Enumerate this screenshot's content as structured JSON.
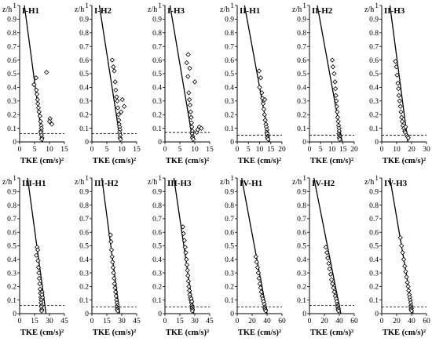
{
  "figure": {
    "ylabel": "z/h",
    "xlabel": "TKE (cm/s)²",
    "colors": {
      "axis": "#000000",
      "marker": "#000000",
      "line": "#000000",
      "dash": "#000000"
    }
  },
  "chart_data": [
    {
      "type": "scatter",
      "title": "I-H1",
      "ylabel": "z/h",
      "xlabel": "TKE (cm/s)²",
      "xlim": [
        0,
        15
      ],
      "xticks": [
        0,
        5,
        10,
        15
      ],
      "ylim": [
        0,
        1.0
      ],
      "yticks": [
        0,
        0.1,
        0.2,
        0.3,
        0.4,
        0.5,
        0.6,
        0.7,
        0.8,
        0.9,
        1.0
      ],
      "points": [
        [
          4.8,
          0.42
        ],
        [
          5.5,
          0.47
        ],
        [
          5.6,
          0.38
        ],
        [
          5.8,
          0.35
        ],
        [
          6.0,
          0.31
        ],
        [
          6.1,
          0.28
        ],
        [
          6.3,
          0.25
        ],
        [
          6.5,
          0.22
        ],
        [
          6.8,
          0.19
        ],
        [
          7.0,
          0.15
        ],
        [
          7.2,
          0.12
        ],
        [
          7.3,
          0.1
        ],
        [
          7.2,
          0.08
        ],
        [
          7.1,
          0.07
        ],
        [
          7.3,
          0.05
        ],
        [
          7.5,
          0.03
        ],
        [
          7.4,
          0.02
        ],
        [
          9.0,
          0.51
        ],
        [
          10.2,
          0.17
        ],
        [
          10.8,
          0.13
        ],
        [
          10.0,
          0.15
        ]
      ],
      "fit_line": [
        [
          1.6,
          1.0
        ],
        [
          7.7,
          0.0
        ]
      ],
      "dashed_y": 0.06
    },
    {
      "type": "scatter",
      "title": "I-H2",
      "ylabel": "z/h",
      "xlabel": "TKE (cm/s)²",
      "xlim": [
        0,
        15
      ],
      "xticks": [
        0,
        5,
        10,
        15
      ],
      "ylim": [
        0,
        1.0
      ],
      "yticks": [
        0,
        0.1,
        0.2,
        0.3,
        0.4,
        0.5,
        0.6,
        0.7,
        0.8,
        0.9,
        1.0
      ],
      "points": [
        [
          6.8,
          0.6
        ],
        [
          7.2,
          0.55
        ],
        [
          7.5,
          0.52
        ],
        [
          7.8,
          0.44
        ],
        [
          8.0,
          0.38
        ],
        [
          8.3,
          0.33
        ],
        [
          8.5,
          0.3
        ],
        [
          8.7,
          0.25
        ],
        [
          8.9,
          0.2
        ],
        [
          9.0,
          0.16
        ],
        [
          9.1,
          0.13
        ],
        [
          9.3,
          0.11
        ],
        [
          9.4,
          0.09
        ],
        [
          9.3,
          0.07
        ],
        [
          9.5,
          0.05
        ],
        [
          9.4,
          0.03
        ],
        [
          9.6,
          0.02
        ],
        [
          10.2,
          0.31
        ],
        [
          10.8,
          0.26
        ],
        [
          9.8,
          0.22
        ]
      ],
      "fit_line": [
        [
          2.5,
          1.0
        ],
        [
          9.6,
          0.0
        ]
      ],
      "dashed_y": 0.06
    },
    {
      "type": "scatter",
      "title": "I-H3",
      "ylabel": "z/h",
      "xlabel": "TKE (cm/s)²",
      "xlim": [
        0,
        15
      ],
      "xticks": [
        0,
        5,
        10,
        15
      ],
      "ylim": [
        0,
        1.0
      ],
      "yticks": [
        0,
        0.1,
        0.2,
        0.3,
        0.4,
        0.5,
        0.6,
        0.7,
        0.8,
        0.9,
        1.0
      ],
      "points": [
        [
          7.8,
          0.64
        ],
        [
          7.3,
          0.58
        ],
        [
          8.3,
          0.54
        ],
        [
          7.7,
          0.48
        ],
        [
          8.0,
          0.36
        ],
        [
          8.2,
          0.31
        ],
        [
          8.4,
          0.27
        ],
        [
          8.6,
          0.22
        ],
        [
          8.8,
          0.18
        ],
        [
          8.9,
          0.14
        ],
        [
          9.0,
          0.11
        ],
        [
          9.2,
          0.08
        ],
        [
          9.1,
          0.06
        ],
        [
          9.3,
          0.04
        ],
        [
          9.2,
          0.03
        ],
        [
          9.5,
          0.02
        ],
        [
          10.0,
          0.44
        ],
        [
          11.5,
          0.11
        ],
        [
          12.2,
          0.1
        ],
        [
          10.7,
          0.07
        ],
        [
          11.0,
          0.09
        ]
      ],
      "fit_line": [
        [
          1.7,
          1.0
        ],
        [
          9.4,
          0.0
        ]
      ],
      "dashed_y": 0.07
    },
    {
      "type": "scatter",
      "title": "II-H1",
      "ylabel": "z/h",
      "xlabel": "TKE (cm/s)²",
      "xlim": [
        0,
        20
      ],
      "xticks": [
        0,
        5,
        10,
        15,
        20
      ],
      "ylim": [
        0,
        1.0
      ],
      "yticks": [
        0,
        0.1,
        0.2,
        0.3,
        0.4,
        0.5,
        0.6,
        0.7,
        0.8,
        0.9,
        1.0
      ],
      "points": [
        [
          9.8,
          0.52
        ],
        [
          10.5,
          0.47
        ],
        [
          10.0,
          0.4
        ],
        [
          11.0,
          0.36
        ],
        [
          11.3,
          0.32
        ],
        [
          11.6,
          0.28
        ],
        [
          11.9,
          0.24
        ],
        [
          12.2,
          0.2
        ],
        [
          12.5,
          0.16
        ],
        [
          12.8,
          0.13
        ],
        [
          13.0,
          0.11
        ],
        [
          13.3,
          0.09
        ],
        [
          13.2,
          0.07
        ],
        [
          13.4,
          0.06
        ],
        [
          13.6,
          0.04
        ],
        [
          13.5,
          0.03
        ],
        [
          13.8,
          0.02
        ],
        [
          12.3,
          0.31
        ]
      ],
      "fit_line": [
        [
          3.3,
          1.0
        ],
        [
          14.5,
          0.0
        ]
      ],
      "dashed_y": 0.05
    },
    {
      "type": "scatter",
      "title": "II-H2",
      "ylabel": "z/h",
      "xlabel": "TKE (cm/s)²",
      "xlim": [
        0,
        20
      ],
      "xticks": [
        0,
        5,
        10,
        15,
        20
      ],
      "ylim": [
        0,
        1.0
      ],
      "yticks": [
        0,
        0.1,
        0.2,
        0.3,
        0.4,
        0.5,
        0.6,
        0.7,
        0.8,
        0.9,
        1.0
      ],
      "points": [
        [
          10.2,
          0.6
        ],
        [
          10.5,
          0.55
        ],
        [
          11.0,
          0.5
        ],
        [
          11.4,
          0.44
        ],
        [
          11.6,
          0.39
        ],
        [
          11.8,
          0.34
        ],
        [
          12.0,
          0.3
        ],
        [
          12.2,
          0.26
        ],
        [
          12.4,
          0.22
        ],
        [
          12.6,
          0.18
        ],
        [
          12.8,
          0.15
        ],
        [
          13.0,
          0.12
        ],
        [
          13.2,
          0.1
        ],
        [
          13.3,
          0.08
        ],
        [
          13.1,
          0.06
        ],
        [
          13.4,
          0.05
        ],
        [
          13.6,
          0.04
        ],
        [
          13.3,
          0.03
        ],
        [
          13.5,
          0.02
        ]
      ],
      "fit_line": [
        [
          3.5,
          1.0
        ],
        [
          14.6,
          0.0
        ]
      ],
      "dashed_y": 0.05
    },
    {
      "type": "scatter",
      "title": "II-H3",
      "ylabel": "z/h",
      "xlabel": "TKE (cm/s)²",
      "xlim": [
        0,
        30
      ],
      "xticks": [
        0,
        10,
        20,
        30
      ],
      "ylim": [
        0,
        1.0
      ],
      "yticks": [
        0,
        0.1,
        0.2,
        0.3,
        0.4,
        0.5,
        0.6,
        0.7,
        0.8,
        0.9,
        1.0
      ],
      "points": [
        [
          9.2,
          0.59
        ],
        [
          9.8,
          0.55
        ],
        [
          10.3,
          0.49
        ],
        [
          10.8,
          0.43
        ],
        [
          11.2,
          0.39
        ],
        [
          11.5,
          0.34
        ],
        [
          12.0,
          0.3
        ],
        [
          12.5,
          0.26
        ],
        [
          12.9,
          0.22
        ],
        [
          13.3,
          0.18
        ],
        [
          13.7,
          0.15
        ],
        [
          14.2,
          0.12
        ],
        [
          14.8,
          0.1
        ],
        [
          15.4,
          0.08
        ],
        [
          15.8,
          0.07
        ],
        [
          16.6,
          0.05
        ],
        [
          17.2,
          0.04
        ],
        [
          17.8,
          0.03
        ],
        [
          16.0,
          0.11
        ]
      ],
      "fit_line": [
        [
          5.5,
          1.0
        ],
        [
          17.5,
          0.0
        ]
      ],
      "dashed_y": 0.05
    },
    {
      "type": "scatter",
      "title": "III-H1",
      "ylabel": "z/h",
      "xlabel": "TKE (cm/s)²",
      "xlim": [
        0,
        45
      ],
      "xticks": [
        0,
        15,
        30,
        45
      ],
      "ylim": [
        0,
        1.0
      ],
      "yticks": [
        0,
        0.1,
        0.2,
        0.3,
        0.4,
        0.5,
        0.6,
        0.7,
        0.8,
        0.9,
        1.0
      ],
      "points": [
        [
          17.6,
          0.49
        ],
        [
          18.2,
          0.47
        ],
        [
          16.8,
          0.43
        ],
        [
          18.5,
          0.39
        ],
        [
          18.9,
          0.34
        ],
        [
          19.3,
          0.3
        ],
        [
          19.7,
          0.26
        ],
        [
          20.1,
          0.22
        ],
        [
          20.5,
          0.18
        ],
        [
          20.9,
          0.15
        ],
        [
          21.3,
          0.12
        ],
        [
          21.7,
          0.1
        ],
        [
          21.5,
          0.08
        ],
        [
          22.0,
          0.06
        ],
        [
          21.8,
          0.05
        ],
        [
          22.3,
          0.03
        ],
        [
          22.1,
          0.02
        ],
        [
          23.0,
          0.12
        ],
        [
          22.6,
          0.16
        ],
        [
          22.4,
          0.14
        ]
      ],
      "fit_line": [
        [
          8.0,
          1.0
        ],
        [
          26.5,
          0.0
        ]
      ],
      "dashed_y": 0.06
    },
    {
      "type": "scatter",
      "title": "III-H2",
      "ylabel": "z/h",
      "xlabel": "TKE (cm/s)²",
      "xlim": [
        0,
        45
      ],
      "xticks": [
        0,
        15,
        30,
        45
      ],
      "ylim": [
        0,
        1.0
      ],
      "yticks": [
        0,
        0.1,
        0.2,
        0.3,
        0.4,
        0.5,
        0.6,
        0.7,
        0.8,
        0.9,
        1.0
      ],
      "points": [
        [
          18.7,
          0.58
        ],
        [
          19.2,
          0.53
        ],
        [
          19.7,
          0.47
        ],
        [
          20.3,
          0.42
        ],
        [
          20.8,
          0.38
        ],
        [
          21.3,
          0.34
        ],
        [
          21.8,
          0.3
        ],
        [
          22.3,
          0.26
        ],
        [
          22.8,
          0.22
        ],
        [
          23.3,
          0.19
        ],
        [
          23.8,
          0.16
        ],
        [
          24.3,
          0.13
        ],
        [
          24.8,
          0.1
        ],
        [
          25.2,
          0.08
        ],
        [
          25.6,
          0.06
        ],
        [
          25.0,
          0.05
        ],
        [
          25.8,
          0.04
        ],
        [
          25.4,
          0.03
        ],
        [
          26.0,
          0.02
        ]
      ],
      "fit_line": [
        [
          10.0,
          1.0
        ],
        [
          28.0,
          0.0
        ]
      ],
      "dashed_y": 0.05
    },
    {
      "type": "scatter",
      "title": "III-H3",
      "ylabel": "z/h",
      "xlabel": "TKE (cm/s)²",
      "xlim": [
        0,
        45
      ],
      "xticks": [
        0,
        15,
        30,
        45
      ],
      "ylim": [
        0,
        1.0
      ],
      "yticks": [
        0,
        0.1,
        0.2,
        0.3,
        0.4,
        0.5,
        0.6,
        0.7,
        0.8,
        0.9,
        1.0
      ],
      "points": [
        [
          18.0,
          0.64
        ],
        [
          18.6,
          0.59
        ],
        [
          19.5,
          0.54
        ],
        [
          20.3,
          0.49
        ],
        [
          21.0,
          0.45
        ],
        [
          21.6,
          0.4
        ],
        [
          22.1,
          0.36
        ],
        [
          22.6,
          0.32
        ],
        [
          23.1,
          0.28
        ],
        [
          23.6,
          0.24
        ],
        [
          24.1,
          0.2
        ],
        [
          24.6,
          0.17
        ],
        [
          25.1,
          0.14
        ],
        [
          25.6,
          0.12
        ],
        [
          26.1,
          0.1
        ],
        [
          26.6,
          0.08
        ],
        [
          27.1,
          0.06
        ],
        [
          27.6,
          0.05
        ],
        [
          27.3,
          0.04
        ],
        [
          27.8,
          0.03
        ],
        [
          27.5,
          0.02
        ],
        [
          26.3,
          0.11
        ],
        [
          27.0,
          0.09
        ]
      ],
      "fit_line": [
        [
          9.0,
          1.0
        ],
        [
          29.0,
          0.0
        ]
      ],
      "dashed_y": 0.05
    },
    {
      "type": "scatter",
      "title": "IV-H1",
      "ylabel": "z/h",
      "xlabel": "TKE (cm/s)²",
      "xlim": [
        0,
        60
      ],
      "xticks": [
        0,
        20,
        40,
        60
      ],
      "ylim": [
        0,
        1.0
      ],
      "yticks": [
        0,
        0.1,
        0.2,
        0.3,
        0.4,
        0.5,
        0.6,
        0.7,
        0.8,
        0.9,
        1.0
      ],
      "points": [
        [
          25.0,
          0.42
        ],
        [
          26.0,
          0.38
        ],
        [
          27.2,
          0.34
        ],
        [
          28.3,
          0.3
        ],
        [
          29.3,
          0.26
        ],
        [
          30.3,
          0.22
        ],
        [
          31.3,
          0.19
        ],
        [
          32.3,
          0.16
        ],
        [
          33.3,
          0.13
        ],
        [
          34.3,
          0.11
        ],
        [
          35.3,
          0.09
        ],
        [
          36.3,
          0.07
        ],
        [
          37.2,
          0.05
        ],
        [
          37.0,
          0.04
        ],
        [
          37.7,
          0.03
        ],
        [
          38.2,
          0.02
        ]
      ],
      "fit_line": [
        [
          6.0,
          1.0
        ],
        [
          40.0,
          0.0
        ]
      ],
      "dashed_y": 0.05
    },
    {
      "type": "scatter",
      "title": "IV-H2",
      "ylabel": "z/h",
      "xlabel": "TKE (cm/s)²",
      "xlim": [
        0,
        60
      ],
      "xticks": [
        0,
        20,
        40,
        60
      ],
      "ylim": [
        0,
        1.0
      ],
      "yticks": [
        0,
        0.1,
        0.2,
        0.3,
        0.4,
        0.5,
        0.6,
        0.7,
        0.8,
        0.9,
        1.0
      ],
      "points": [
        [
          22.0,
          0.49
        ],
        [
          23.3,
          0.45
        ],
        [
          24.5,
          0.41
        ],
        [
          25.8,
          0.37
        ],
        [
          27.0,
          0.33
        ],
        [
          28.3,
          0.29
        ],
        [
          29.5,
          0.25
        ],
        [
          30.8,
          0.22
        ],
        [
          32.0,
          0.19
        ],
        [
          33.3,
          0.16
        ],
        [
          34.5,
          0.13
        ],
        [
          35.8,
          0.11
        ],
        [
          36.8,
          0.09
        ],
        [
          37.5,
          0.07
        ],
        [
          38.3,
          0.06
        ],
        [
          37.8,
          0.05
        ],
        [
          38.8,
          0.04
        ],
        [
          38.3,
          0.03
        ],
        [
          39.0,
          0.02
        ]
      ],
      "fit_line": [
        [
          6.0,
          1.0
        ],
        [
          42.0,
          0.0
        ]
      ],
      "dashed_y": 0.06
    },
    {
      "type": "scatter",
      "title": "IV-H3",
      "ylabel": "z/h",
      "xlabel": "TKE (cm/s)²",
      "xlim": [
        0,
        60
      ],
      "xticks": [
        0,
        20,
        40,
        60
      ],
      "ylim": [
        0,
        1.0
      ],
      "yticks": [
        0,
        0.1,
        0.2,
        0.3,
        0.4,
        0.5,
        0.6,
        0.7,
        0.8,
        0.9,
        1.0
      ],
      "points": [
        [
          25.0,
          0.56
        ],
        [
          26.5,
          0.5
        ],
        [
          28.0,
          0.45
        ],
        [
          29.5,
          0.4
        ],
        [
          30.8,
          0.35
        ],
        [
          32.0,
          0.31
        ],
        [
          33.2,
          0.27
        ],
        [
          34.3,
          0.23
        ],
        [
          35.3,
          0.2
        ],
        [
          36.2,
          0.17
        ],
        [
          37.0,
          0.14
        ],
        [
          37.7,
          0.12
        ],
        [
          38.3,
          0.1
        ],
        [
          38.8,
          0.08
        ],
        [
          39.3,
          0.06
        ],
        [
          38.9,
          0.05
        ],
        [
          39.7,
          0.04
        ],
        [
          39.3,
          0.03
        ],
        [
          40.0,
          0.02
        ]
      ],
      "fit_line": [
        [
          11.0,
          1.0
        ],
        [
          42.0,
          0.0
        ]
      ],
      "dashed_y": 0.05
    }
  ]
}
